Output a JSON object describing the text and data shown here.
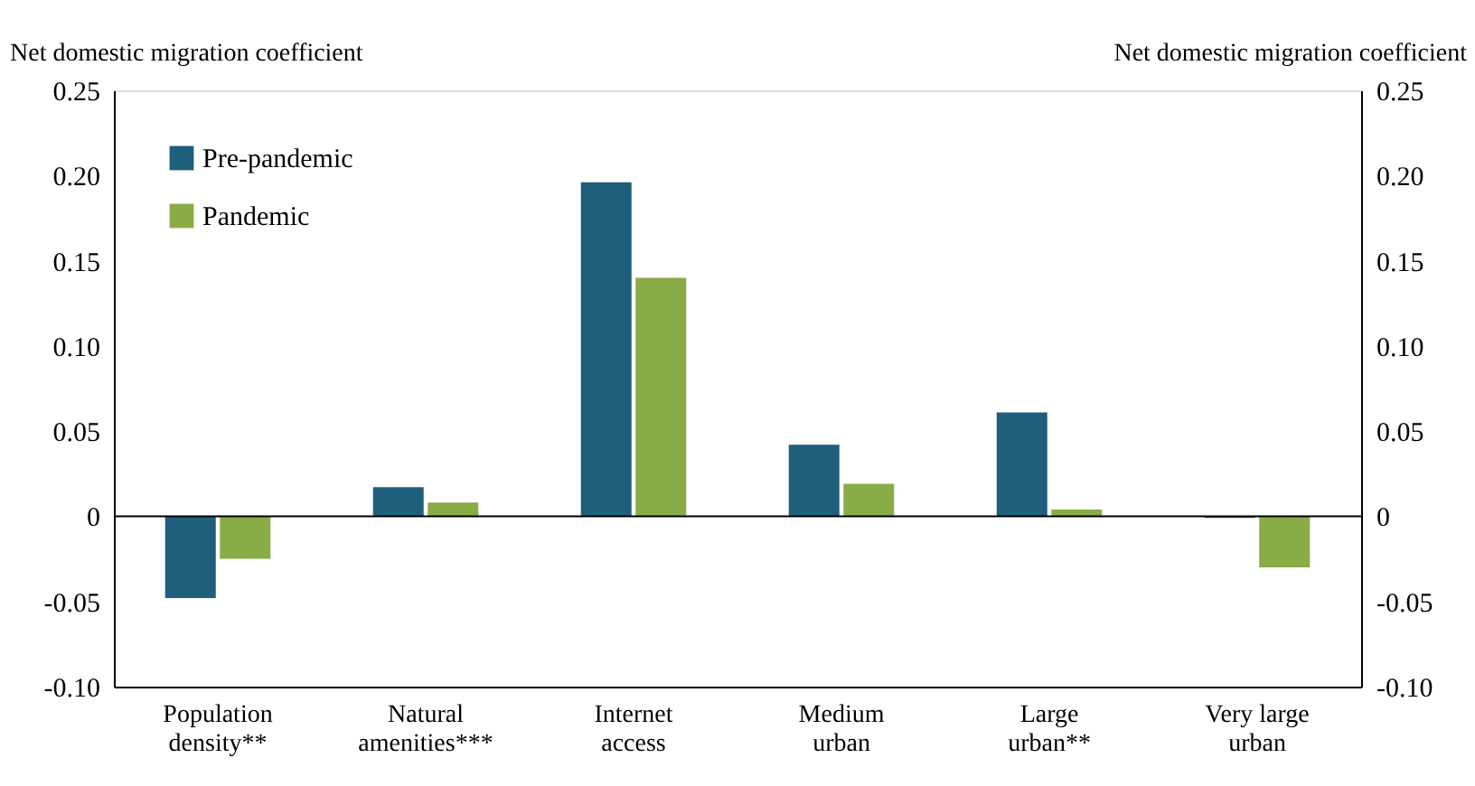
{
  "chart_data": {
    "type": "bar",
    "ylabel": "Net domestic migration coefficient",
    "y2label": "Net domestic migration coefficient",
    "categories": [
      "Population\ndensity**",
      "Natural\namenities***",
      "Internet\naccess",
      "Medium\nurban",
      "Large\nurban**",
      "Very large\nurban"
    ],
    "series": [
      {
        "name": "Pre-pandemic",
        "color": "#1f5f7b",
        "values": [
          -0.048,
          0.017,
          0.196,
          0.042,
          0.061,
          -0.001
        ]
      },
      {
        "name": "Pandemic",
        "color": "#8aac46",
        "values": [
          -0.025,
          0.008,
          0.14,
          0.019,
          0.004,
          -0.03
        ]
      }
    ],
    "ylim": [
      -0.1,
      0.25
    ],
    "yticks": [
      {
        "value": -0.1,
        "label": "-0.10"
      },
      {
        "value": -0.05,
        "label": "-0.05"
      },
      0,
      {
        "value": 0.05,
        "label": "0.05"
      },
      {
        "value": 0.1,
        "label": "0.10"
      },
      {
        "value": 0.15,
        "label": "0.15"
      },
      {
        "value": 0.2,
        "label": "0.20"
      },
      {
        "value": 0.25,
        "label": "0.25"
      }
    ],
    "y2lim": [
      -0.1,
      0.25
    ],
    "y2ticks": [
      {
        "value": -0.1,
        "label": "-0.10"
      },
      {
        "value": -0.05,
        "label": "-0.05"
      },
      0,
      {
        "value": 0.05,
        "label": "0.05"
      },
      {
        "value": 0.1,
        "label": "0.10"
      },
      {
        "value": 0.15,
        "label": "0.15"
      },
      {
        "value": 0.2,
        "label": "0.20"
      },
      {
        "value": 0.25,
        "label": "0.25"
      }
    ],
    "ref_lines": [
      {
        "axis": "y",
        "value": 0,
        "color": "#000000"
      }
    ],
    "legend": "top left",
    "grid": false
  }
}
